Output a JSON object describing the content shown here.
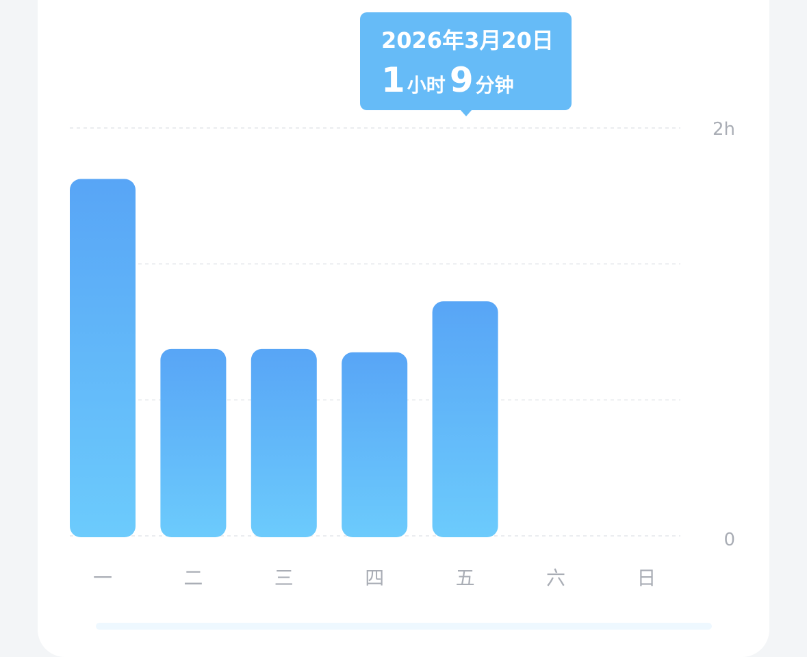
{
  "tooltip": {
    "date": "2026年3月20日",
    "hours": "1",
    "hours_unit": "小时",
    "minutes": "9",
    "minutes_unit": "分钟"
  },
  "colors": {
    "bar_top": "#58a5f6",
    "bar_bottom": "#6ccbfc",
    "tooltip": "#66bbf7",
    "grid": "#e3e6ea",
    "axis_text": "#a9adb5"
  },
  "chart_data": {
    "type": "bar",
    "categories": [
      "一",
      "二",
      "三",
      "四",
      "五",
      "六",
      "日"
    ],
    "values": [
      105,
      55,
      55,
      54,
      69,
      0,
      0
    ],
    "unit": "minutes",
    "ylim": [
      0,
      120
    ],
    "y_tick_labels": [
      "0",
      "2h"
    ],
    "grid": true,
    "highlighted": "五"
  }
}
